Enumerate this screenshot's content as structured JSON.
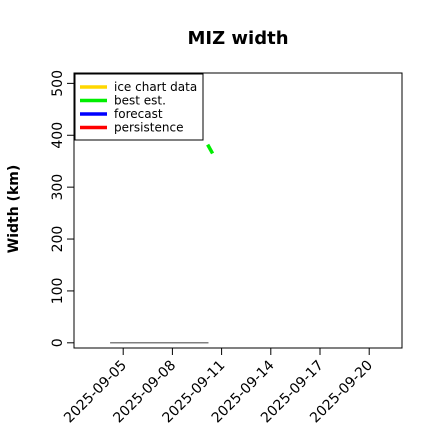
{
  "chart_data": {
    "type": "line",
    "title": "MIZ width",
    "xlabel": "",
    "ylabel": "Width (km)",
    "ylim": [
      -10,
      520
    ],
    "yticks": [
      0,
      100,
      200,
      300,
      400,
      500
    ],
    "xlim": [
      "2025-09-02",
      "2025-09-22"
    ],
    "xticks": [
      "2025-09-05",
      "2025-09-08",
      "2025-09-11",
      "2025-09-14",
      "2025-09-17",
      "2025-09-20"
    ],
    "highlight_tick": "2025-09-11",
    "highlight_color": "#228B22",
    "legend_position": "top-left",
    "grid": false,
    "series": [
      {
        "name": "ice chart data",
        "color": "#FFD700",
        "x": [],
        "y": []
      },
      {
        "name": "best est.",
        "color": "#00EE00",
        "x": [
          "2025-09-10.15",
          "2025-09-10.45"
        ],
        "y": [
          382,
          365
        ]
      },
      {
        "name": "forecast",
        "color": "#0000FF",
        "x": [],
        "y": []
      },
      {
        "name": "persistence",
        "color": "#FF0000",
        "x": [],
        "y": []
      }
    ],
    "reference_line": {
      "color": "#808080",
      "x": [
        "2025-09-04.2",
        "2025-09-10.2"
      ],
      "y": [
        0,
        0
      ]
    }
  }
}
